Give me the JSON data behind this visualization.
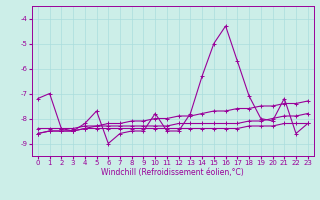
{
  "bg_color": "#cceee8",
  "line_color": "#990099",
  "grid_color": "#aadddd",
  "xlabel": "Windchill (Refroidissement éolien,°C)",
  "xlim": [
    -0.5,
    23.5
  ],
  "ylim": [
    -9.5,
    -3.5
  ],
  "yticks": [
    -9,
    -8,
    -7,
    -6,
    -5,
    -4
  ],
  "xticks": [
    0,
    1,
    2,
    3,
    4,
    5,
    6,
    7,
    8,
    9,
    10,
    11,
    12,
    13,
    14,
    15,
    16,
    17,
    18,
    19,
    20,
    21,
    22,
    23
  ],
  "s1": [
    -7.2,
    -7.0,
    -8.4,
    -8.5,
    -8.2,
    -7.7,
    -9.0,
    -8.6,
    -8.5,
    -8.5,
    -7.8,
    -8.5,
    -8.5,
    -7.8,
    -6.3,
    -5.0,
    -4.3,
    -5.7,
    -7.1,
    -8.0,
    -8.1,
    -7.2,
    -8.6,
    -8.2
  ],
  "s2": [
    -8.6,
    -8.5,
    -8.5,
    -8.5,
    -8.4,
    -8.3,
    -8.2,
    -8.2,
    -8.1,
    -8.1,
    -8.0,
    -8.0,
    -7.9,
    -7.9,
    -7.8,
    -7.7,
    -7.7,
    -7.6,
    -7.6,
    -7.5,
    -7.5,
    -7.4,
    -7.4,
    -7.3
  ],
  "s3": [
    -8.6,
    -8.5,
    -8.5,
    -8.5,
    -8.4,
    -8.4,
    -8.4,
    -8.4,
    -8.4,
    -8.4,
    -8.4,
    -8.4,
    -8.4,
    -8.4,
    -8.4,
    -8.4,
    -8.4,
    -8.4,
    -8.3,
    -8.3,
    -8.3,
    -8.2,
    -8.2,
    -8.2
  ],
  "s4": [
    -8.4,
    -8.4,
    -8.4,
    -8.4,
    -8.3,
    -8.3,
    -8.3,
    -8.3,
    -8.3,
    -8.3,
    -8.3,
    -8.3,
    -8.2,
    -8.2,
    -8.2,
    -8.2,
    -8.2,
    -8.2,
    -8.1,
    -8.1,
    -8.0,
    -7.9,
    -7.9,
    -7.8
  ],
  "marker": "+",
  "markersize": 3,
  "linewidth": 0.8,
  "tick_fontsize": 5.0,
  "xlabel_fontsize": 5.5
}
